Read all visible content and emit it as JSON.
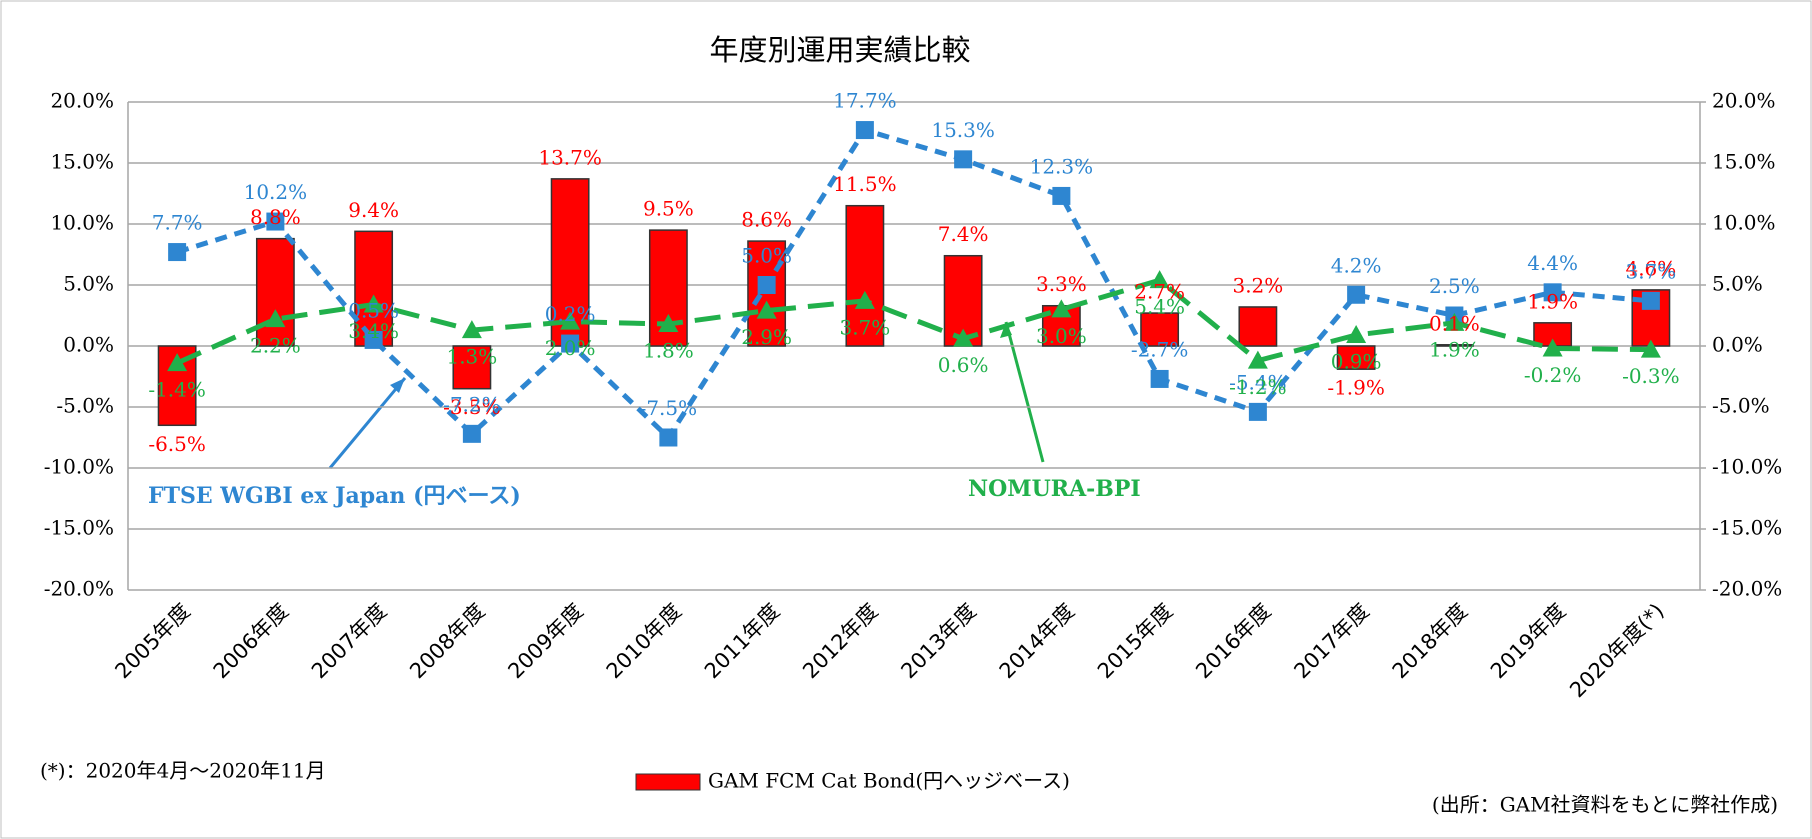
{
  "chart_data": {
    "type": "bar_line",
    "title": "年度別運用実績比較",
    "categories": [
      "2005年度",
      "2006年度",
      "2007年度",
      "2008年度",
      "2009年度",
      "2010年度",
      "2011年度",
      "2012年度",
      "2013年度",
      "2014年度",
      "2015年度",
      "2016年度",
      "2017年度",
      "2018年度",
      "2019年度",
      "2020年度(*)"
    ],
    "series": [
      {
        "name": "GAM FCM Cat Bond(円ヘッジベース)",
        "type": "bar",
        "color": "#ff0000",
        "values": [
          -6.5,
          8.8,
          9.4,
          -3.5,
          13.7,
          9.5,
          8.6,
          11.5,
          7.4,
          3.3,
          2.7,
          3.2,
          -1.9,
          0.1,
          1.9,
          4.6
        ],
        "value_labels": [
          "-6.5%",
          "8.8%",
          "9.4%",
          "-3.5%",
          "13.7%",
          "9.5%",
          "8.6%",
          "11.5%",
          "7.4%",
          "3.3%",
          "2.7%",
          "3.2%",
          "-1.9%",
          "0.1%",
          "1.9%",
          "4.6%"
        ]
      },
      {
        "name": "FTSE WGBI ex Japan (円ベース)",
        "type": "line",
        "color": "#2e86d1",
        "values": [
          7.7,
          10.2,
          0.5,
          -7.2,
          0.2,
          -7.5,
          5.0,
          17.7,
          15.3,
          12.3,
          -2.7,
          -5.4,
          4.2,
          2.5,
          4.4,
          3.7
        ],
        "value_labels": [
          "7.7%",
          "10.2%",
          "0.5%",
          "-7.2%",
          "0.2%",
          "-7.5%",
          "5.0%",
          "17.7%",
          "15.3%",
          "12.3%",
          "-2.7%",
          "-5.4%",
          "4.2%",
          "2.5%",
          "4.4%",
          "3.7%"
        ]
      },
      {
        "name": "NOMURA-BPI",
        "type": "line",
        "color": "#21b04b",
        "values": [
          -1.4,
          2.2,
          3.4,
          1.3,
          2.0,
          1.8,
          2.9,
          3.7,
          0.6,
          3.0,
          5.4,
          -1.2,
          0.9,
          1.9,
          -0.2,
          -0.3
        ],
        "value_labels": [
          "-1.4%",
          "2.2%",
          "3.4%",
          "1.3%",
          "2.0%",
          "1.8%",
          "2.9%",
          "3.7%",
          "0.6%",
          "3.0%",
          "5.4%",
          "-1.2%",
          "0.9%",
          "1.9%",
          "-0.2%",
          "-0.3%"
        ]
      }
    ],
    "ylim": [
      -20,
      20
    ],
    "yticks": [
      {
        "value": -20,
        "label": "-20.0%"
      },
      {
        "value": -15,
        "label": "-15.0%"
      },
      {
        "value": -10,
        "label": "-10.0%"
      },
      {
        "value": -5,
        "label": "-5.0%"
      },
      {
        "value": 0,
        "label": "0.0%"
      },
      {
        "value": 5,
        "label": "5.0%"
      },
      {
        "value": 10,
        "label": "10.0%"
      },
      {
        "value": 15,
        "label": "15.0%"
      },
      {
        "value": 20,
        "label": "20.0%"
      }
    ],
    "y2lim": [
      -20,
      20
    ],
    "y2ticks": [
      {
        "value": -20,
        "label": "-20.0%"
      },
      {
        "value": -15,
        "label": "-15.0%"
      },
      {
        "value": -10,
        "label": "-10.0%"
      },
      {
        "value": -5,
        "label": "-5.0%"
      },
      {
        "value": 0,
        "label": "0.0%"
      },
      {
        "value": 5,
        "label": "5.0%"
      },
      {
        "value": 10,
        "label": "10.0%"
      },
      {
        "value": 15,
        "label": "15.0%"
      },
      {
        "value": 20,
        "label": "20.0%"
      }
    ],
    "grid": true,
    "annotations": [
      "(*)：2020年4月～2020年11月",
      "(出所：GAM社資料をもとに弊社作成)"
    ]
  }
}
